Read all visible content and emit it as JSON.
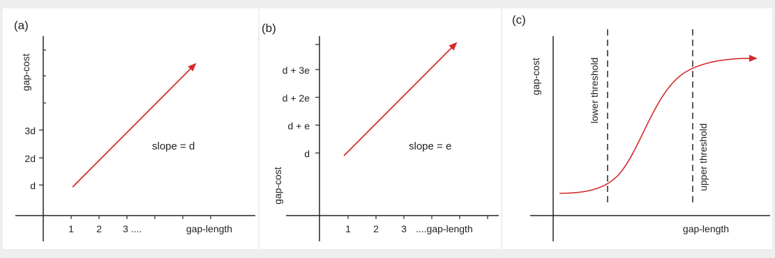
{
  "colors": {
    "arrow": "#d42a2a",
    "axis": "#222222",
    "dash": "#222222"
  },
  "panels": [
    {
      "tag": "(a)",
      "y_axis_label": "gap-cost",
      "x_axis_label": "gap-length",
      "x_ticks": [
        "1",
        "2",
        "3 ...."
      ],
      "y_ticks": [
        "d",
        "2d",
        "3d"
      ],
      "annotation": "slope = d"
    },
    {
      "tag": "(b)",
      "y_axis_label": "gap-cost",
      "x_axis_label": "....gap-length",
      "x_ticks": [
        "1",
        "2",
        "3"
      ],
      "y_ticks": [
        "d",
        "d + e",
        "d + 2e",
        "d + 3e"
      ],
      "annotation": "slope = e"
    },
    {
      "tag": "(c)",
      "y_axis_label": "gap-cost",
      "x_axis_label": "gap-length",
      "lower_threshold_label": "lower threshold",
      "upper_threshold_label": "upper threshold"
    }
  ]
}
